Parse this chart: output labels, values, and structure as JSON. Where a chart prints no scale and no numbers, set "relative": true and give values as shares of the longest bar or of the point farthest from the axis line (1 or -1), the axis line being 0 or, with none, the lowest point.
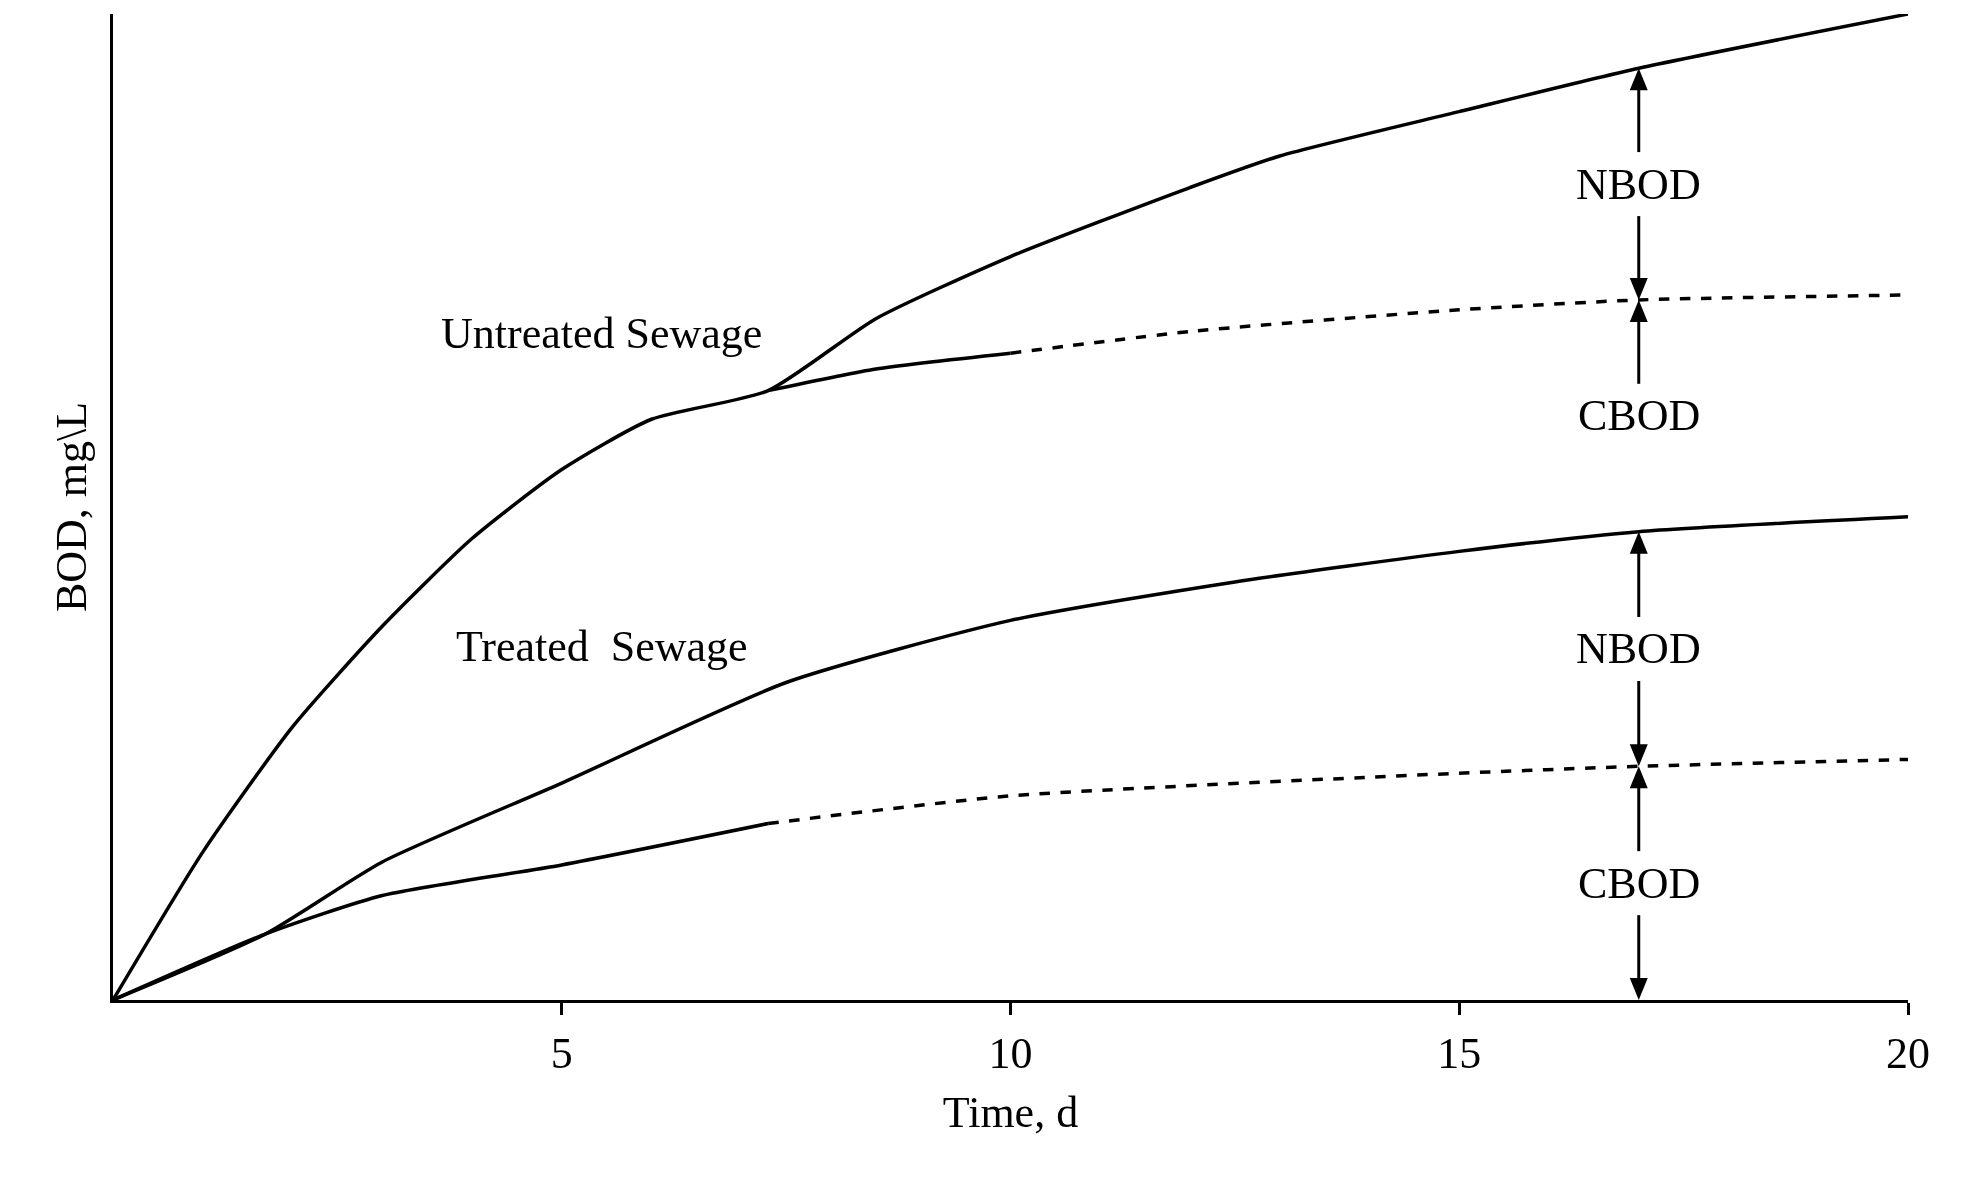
{
  "chart_data": {
    "type": "line",
    "xlabel": "Time, d",
    "ylabel": "BOD, mg\\L",
    "relative": true,
    "xlim": [
      0,
      20
    ],
    "xticks": [
      5,
      10,
      15,
      20
    ],
    "grid": false,
    "legend": false,
    "marker": "none",
    "series": [
      {
        "name": "Untreated Sewage",
        "color": "#000000",
        "line_style": "solid",
        "x": [
          0,
          1,
          2,
          3,
          4,
          5,
          6,
          7.3,
          8.5,
          10,
          12,
          13,
          15,
          17,
          20
        ],
        "values": [
          0,
          0.15,
          0.277,
          0.379,
          0.468,
          0.538,
          0.589,
          0.618,
          0.691,
          0.754,
          0.824,
          0.856,
          0.901,
          0.945,
          1
        ]
      },
      {
        "color": "#000000",
        "line_style": "solid",
        "x": [
          7.3,
          8.5,
          10
        ],
        "values": [
          0.618,
          0.64,
          0.656
        ]
      },
      {
        "color": "#000000",
        "line_style": "dashed",
        "x": [
          10,
          12,
          15,
          17,
          20
        ],
        "values": [
          0.656,
          0.678,
          0.7,
          0.71,
          0.715
        ]
      },
      {
        "name": "Treated  Sewage",
        "color": "#000000",
        "line_style": "solid",
        "x": [
          0,
          1.7,
          3,
          5,
          7.5,
          10,
          12.5,
          15,
          17,
          20
        ],
        "values": [
          0,
          0.067,
          0.14,
          0.22,
          0.322,
          0.385,
          0.424,
          0.455,
          0.475,
          0.49
        ]
      },
      {
        "color": "#000000",
        "line_style": "solid",
        "x": [
          0,
          1.7,
          3,
          5,
          7.3
        ],
        "values": [
          0,
          0.067,
          0.106,
          0.137,
          0.179
        ]
      },
      {
        "color": "#000000",
        "line_style": "dashed",
        "x": [
          7.3,
          10,
          15,
          17,
          20
        ],
        "values": [
          0.179,
          0.207,
          0.23,
          0.237,
          0.244
        ]
      }
    ],
    "annotations": [
      "NBOD",
      "CBOD",
      "NBOD",
      "CBOD"
    ]
  }
}
